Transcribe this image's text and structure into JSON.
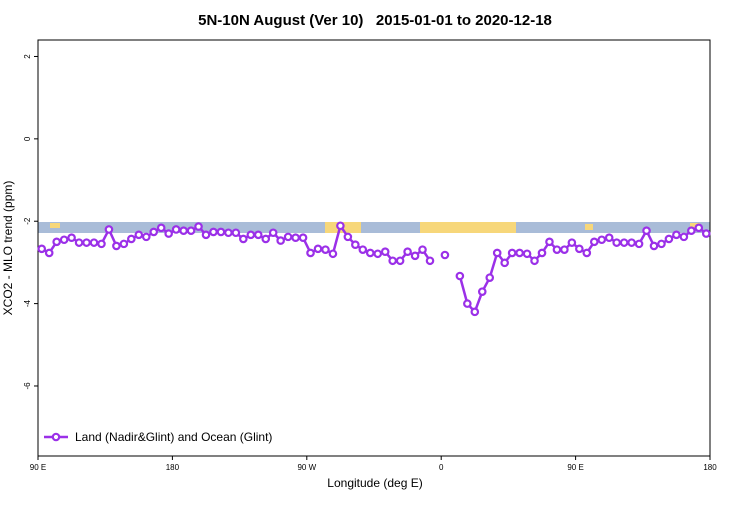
{
  "chart_data": {
    "type": "line",
    "title": "5N-10N August (Ver 10)   2015-01-01 to 2020-12-18",
    "xlabel": "Longitude (deg E)",
    "ylabel": "XCO2 - MLO trend (ppm)",
    "xlim": [
      90,
      540
    ],
    "ylim": [
      -7.7,
      2.4
    ],
    "xticks": [
      {
        "value": 90,
        "label": "90 E"
      },
      180,
      {
        "value": 270,
        "label": "90 W"
      },
      {
        "value": 360,
        "label": "0"
      },
      {
        "value": 450,
        "label": "90 E"
      },
      {
        "value": 540,
        "label": "180"
      }
    ],
    "yticks": [
      2,
      0,
      -2,
      -4,
      -6
    ],
    "legend": "bottom-left",
    "x": [
      92.5,
      97.5,
      102.5,
      107.5,
      112.5,
      117.5,
      122.5,
      127.5,
      132.5,
      137.5,
      142.5,
      147.5,
      152.5,
      157.5,
      162.5,
      167.5,
      172.5,
      177.5,
      182.5,
      187.5,
      192.5,
      197.5,
      202.5,
      207.5,
      212.5,
      217.5,
      222.5,
      227.5,
      232.5,
      237.5,
      242.5,
      247.5,
      252.5,
      257.5,
      262.5,
      267.5,
      272.5,
      277.5,
      282.5,
      287.5,
      292.5,
      297.5,
      302.5,
      307.5,
      312.5,
      317.5,
      322.5,
      327.5,
      332.5,
      337.5,
      342.5,
      347.5,
      352.5,
      357.5,
      362.5,
      367.5,
      372.5,
      377.5,
      382.5,
      387.5,
      392.5,
      397.5,
      402.5,
      407.5,
      412.5,
      417.5,
      422.5,
      427.5,
      432.5,
      437.5,
      442.5,
      447.5,
      452.5,
      457.5,
      462.5,
      467.5,
      472.5,
      477.5,
      482.5,
      487.5,
      492.5,
      497.5,
      502.5,
      507.5,
      512.5,
      517.5,
      522.5,
      527.5,
      532.5,
      537.5
    ],
    "series": [
      {
        "name": "Land (Nadir&Glint) and Ocean (Glint)",
        "color": "#9b30e8",
        "values": [
          -2.67,
          -2.77,
          -2.5,
          -2.45,
          -2.4,
          -2.52,
          -2.52,
          -2.52,
          -2.55,
          -2.2,
          -2.6,
          -2.55,
          -2.43,
          -2.33,
          -2.38,
          -2.26,
          -2.16,
          -2.3,
          -2.2,
          -2.23,
          -2.23,
          -2.13,
          -2.33,
          -2.26,
          -2.26,
          -2.28,
          -2.28,
          -2.43,
          -2.33,
          -2.33,
          -2.43,
          -2.28,
          -2.47,
          -2.38,
          -2.4,
          -2.4,
          -2.77,
          -2.67,
          -2.69,
          -2.79,
          -2.11,
          -2.38,
          -2.57,
          -2.69,
          -2.77,
          -2.79,
          -2.74,
          -2.96,
          -2.96,
          -2.74,
          -2.84,
          -2.69,
          -2.96,
          null,
          -2.82,
          null,
          -3.33,
          -4.0,
          -4.2,
          -3.71,
          -3.37,
          -2.77,
          -3.01,
          -2.77,
          -2.77,
          -2.79,
          -2.96,
          -2.77,
          -2.5,
          -2.69,
          -2.69,
          -2.52,
          -2.67,
          -2.77,
          -2.5,
          -2.45,
          -2.4,
          -2.52,
          -2.52,
          -2.52,
          -2.55,
          -2.23,
          -2.6,
          -2.55,
          -2.43,
          -2.33,
          -2.38,
          -2.23,
          -2.16,
          -2.3
        ]
      }
    ]
  }
}
